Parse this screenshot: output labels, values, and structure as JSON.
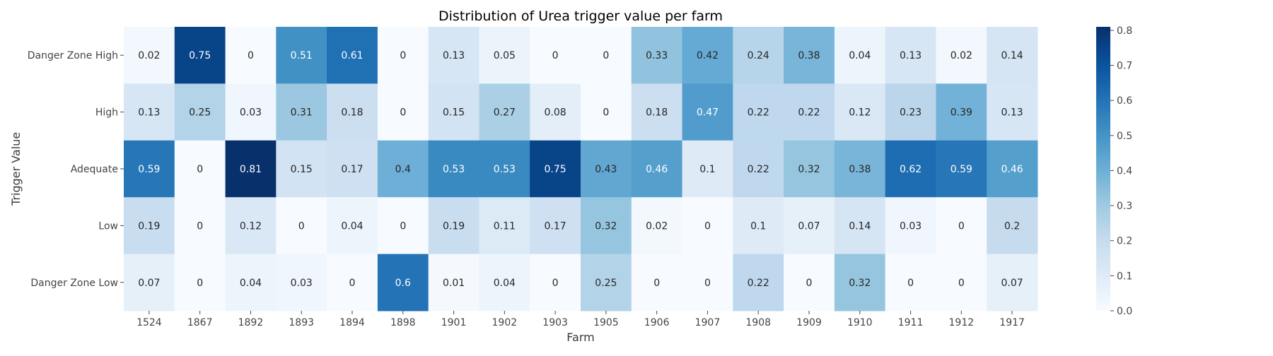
{
  "chart_data": {
    "type": "heatmap",
    "title": "Distribution of Urea trigger value per farm",
    "xlabel": "Farm",
    "ylabel": "Trigger Value",
    "x_categories": [
      "1524",
      "1867",
      "1892",
      "1893",
      "1894",
      "1898",
      "1901",
      "1902",
      "1903",
      "1905",
      "1906",
      "1907",
      "1908",
      "1909",
      "1910",
      "1911",
      "1912",
      "1917"
    ],
    "y_categories": [
      "Danger Zone High",
      "High",
      "Adequate",
      "Low",
      "Danger Zone Low"
    ],
    "values": [
      [
        0.02,
        0.75,
        0,
        0.51,
        0.61,
        0,
        0.13,
        0.05,
        0,
        0,
        0.33,
        0.42,
        0.24,
        0.38,
        0.04,
        0.13,
        0.02,
        0.14
      ],
      [
        0.13,
        0.25,
        0.03,
        0.31,
        0.18,
        0,
        0.15,
        0.27,
        0.08,
        0,
        0.18,
        0.47,
        0.22,
        0.22,
        0.12,
        0.23,
        0.39,
        0.13
      ],
      [
        0.59,
        0,
        0.81,
        0.15,
        0.17,
        0.4,
        0.53,
        0.53,
        0.75,
        0.43,
        0.46,
        0.1,
        0.22,
        0.32,
        0.38,
        0.62,
        0.59,
        0.46
      ],
      [
        0.19,
        0,
        0.12,
        0,
        0.04,
        0,
        0.19,
        0.11,
        0.17,
        0.32,
        0.02,
        0,
        0.1,
        0.07,
        0.14,
        0.03,
        0,
        0.2
      ],
      [
        0.07,
        0,
        0.04,
        0.03,
        0,
        0.6,
        0.01,
        0.04,
        0,
        0.25,
        0,
        0,
        0.22,
        0,
        0.32,
        0,
        0,
        0.07
      ]
    ],
    "colorbar": {
      "min": 0.0,
      "max": 0.81,
      "ticks": [
        "0.0",
        "0.1",
        "0.2",
        "0.3",
        "0.4",
        "0.5",
        "0.6",
        "0.7",
        "0.8"
      ],
      "colormap": "Blues"
    },
    "annotations": true
  }
}
